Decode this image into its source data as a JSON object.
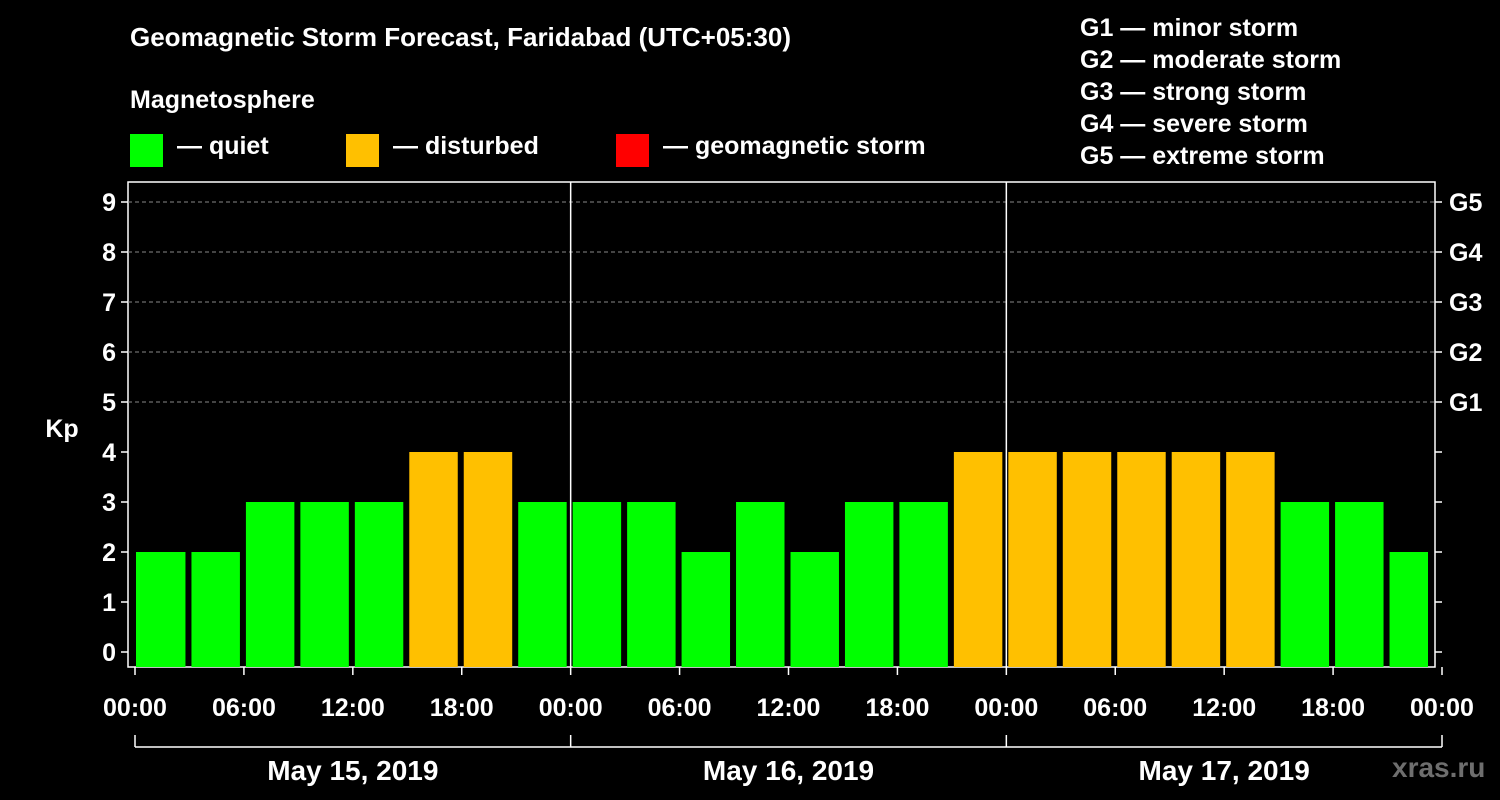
{
  "title": "Geomagnetic Storm Forecast, Faridabad (UTC+05:30)",
  "subtitle": "Magnetosphere",
  "legend": [
    {
      "label": "— quiet",
      "color": "#00ff00"
    },
    {
      "label": "— disturbed",
      "color": "#ffc000"
    },
    {
      "label": "— geomagnetic storm",
      "color": "#ff0000"
    }
  ],
  "g_scale": [
    "G1 — minor storm",
    "G2 — moderate storm",
    "G3 — strong storm",
    "G4 — severe storm",
    "G5 — extreme storm"
  ],
  "watermark": "xras.ru",
  "chart_data": {
    "type": "bar",
    "ylabel": "Kp",
    "ylim": [
      0,
      9.4
    ],
    "y_ticks": [
      0,
      1,
      2,
      3,
      4,
      5,
      6,
      7,
      8,
      9
    ],
    "grid_y": [
      5,
      6,
      7,
      8,
      9
    ],
    "right_ticks": [
      {
        "value": 5,
        "label": "G1"
      },
      {
        "value": 6,
        "label": "G2"
      },
      {
        "value": 7,
        "label": "G3"
      },
      {
        "value": 8,
        "label": "G4"
      },
      {
        "value": 9,
        "label": "G5"
      }
    ],
    "x_tick_labels": [
      "00:00",
      "06:00",
      "12:00",
      "18:00",
      "00:00",
      "06:00",
      "12:00",
      "18:00",
      "00:00",
      "06:00",
      "12:00",
      "18:00",
      "00:00"
    ],
    "dates": [
      "May 15, 2019",
      "May 16, 2019",
      "May 17, 2019"
    ],
    "interval_hours": 3,
    "kp_values": [
      2,
      2,
      3,
      3,
      3,
      4,
      4,
      3,
      3,
      3,
      2,
      3,
      2,
      3,
      3,
      4,
      4,
      4,
      4,
      4,
      4,
      3,
      3,
      2
    ],
    "colors": {
      "quiet": "#00ff00",
      "disturbed": "#ffc000",
      "storm": "#ff0000"
    }
  }
}
